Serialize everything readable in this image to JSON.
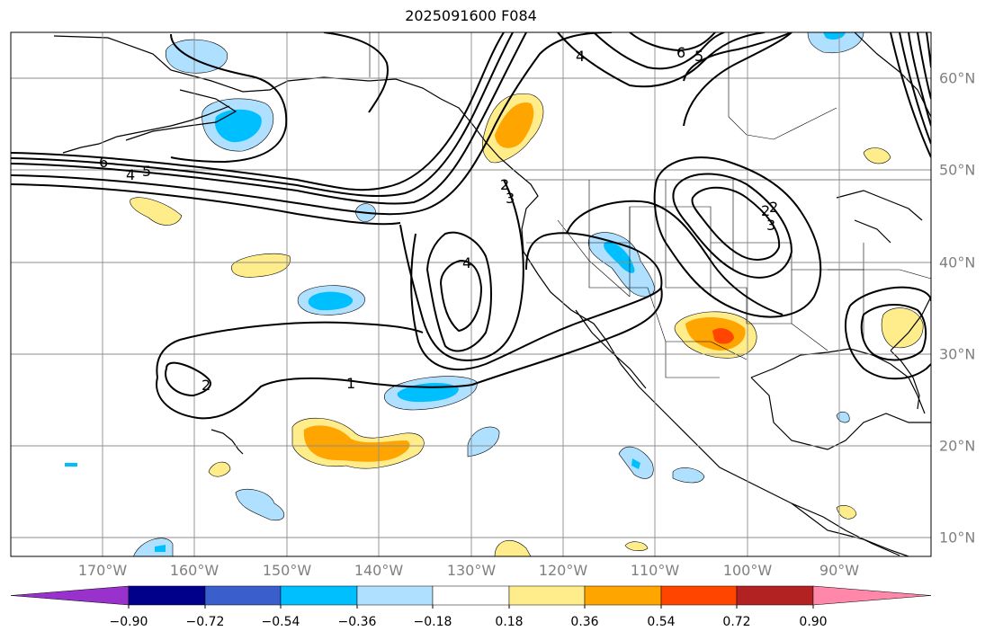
{
  "title": "2025091600 F084",
  "map": {
    "projection": "PlateCarree",
    "lon_range": [
      -180,
      -80
    ],
    "lat_range": [
      8,
      65
    ],
    "lon_labels": [
      "170°W",
      "160°W",
      "150°W",
      "140°W",
      "130°W",
      "120°W",
      "110°W",
      "100°W",
      "90°W"
    ],
    "lat_labels": [
      "10°N",
      "20°N",
      "30°N",
      "40°N",
      "50°N",
      "60°N"
    ],
    "contour_labels": [
      "6",
      "4",
      "5",
      "2",
      "3",
      "4",
      "1",
      "2",
      "4",
      "6",
      "5",
      "2",
      "3",
      "2"
    ]
  },
  "colorbar": {
    "ticks": [
      "−0.90",
      "−0.72",
      "−0.54",
      "−0.36",
      "−0.18",
      "0.18",
      "0.36",
      "0.54",
      "0.72",
      "0.90"
    ],
    "colors": {
      "under": "#9932cc",
      "c1": "#00008b",
      "c2": "#3a5fcd",
      "c3": "#00bfff",
      "c4": "#b0e0ff",
      "c5": "#ffffff",
      "c6": "#ffec8b",
      "c7": "#ffa500",
      "c8": "#ff4500",
      "c9": "#b22222",
      "over": "#ff88aa"
    }
  }
}
